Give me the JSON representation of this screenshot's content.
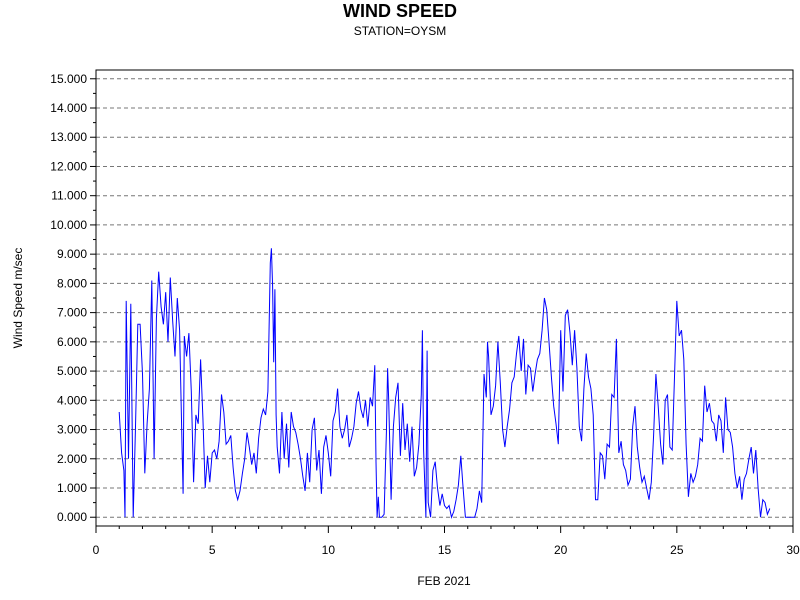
{
  "chart_data": {
    "type": "line",
    "title": "WIND SPEED",
    "subtitle": "STATION=OYSM",
    "xlabel": "FEB 2021",
    "ylabel": "Wind Speed m/sec",
    "xlim": [
      0,
      30
    ],
    "ylim": [
      -0.3,
      15.3
    ],
    "x_ticks": [
      0,
      5,
      10,
      15,
      20,
      25,
      30
    ],
    "y_ticks": [
      0,
      1,
      2,
      3,
      4,
      5,
      6,
      7,
      8,
      9,
      10,
      11,
      12,
      13,
      14,
      15
    ],
    "y_tick_labels": [
      "0.000",
      "1.000",
      "2.000",
      "3.000",
      "4.000",
      "5.000",
      "6.000",
      "7.000",
      "8.000",
      "9.000",
      "10.000",
      "11.000",
      "12.000",
      "13.000",
      "14.000",
      "15.000"
    ],
    "grid": "horizontal-dashed",
    "color": "#0000ff",
    "series": [
      {
        "values": [
          [
            1.0,
            3.6
          ],
          [
            1.1,
            2.2
          ],
          [
            1.2,
            1.6
          ],
          [
            1.25,
            0.0
          ],
          [
            1.3,
            7.4
          ],
          [
            1.4,
            2.0
          ],
          [
            1.5,
            7.3
          ],
          [
            1.6,
            0.0
          ],
          [
            1.7,
            3.1
          ],
          [
            1.8,
            6.6
          ],
          [
            1.9,
            6.6
          ],
          [
            2.0,
            4.9
          ],
          [
            2.1,
            1.5
          ],
          [
            2.2,
            3.2
          ],
          [
            2.3,
            4.4
          ],
          [
            2.4,
            8.1
          ],
          [
            2.5,
            2.0
          ],
          [
            2.6,
            6.8
          ],
          [
            2.7,
            8.4
          ],
          [
            2.8,
            7.2
          ],
          [
            2.9,
            6.6
          ],
          [
            3.0,
            7.7
          ],
          [
            3.1,
            6.0
          ],
          [
            3.2,
            8.2
          ],
          [
            3.3,
            6.7
          ],
          [
            3.4,
            5.5
          ],
          [
            3.5,
            7.5
          ],
          [
            3.6,
            6.4
          ],
          [
            3.7,
            2.5
          ],
          [
            3.75,
            0.8
          ],
          [
            3.8,
            6.2
          ],
          [
            3.9,
            5.5
          ],
          [
            4.0,
            6.3
          ],
          [
            4.1,
            4.3
          ],
          [
            4.2,
            1.2
          ],
          [
            4.3,
            3.5
          ],
          [
            4.4,
            3.2
          ],
          [
            4.5,
            5.4
          ],
          [
            4.6,
            3.4
          ],
          [
            4.7,
            1.0
          ],
          [
            4.8,
            2.1
          ],
          [
            4.9,
            1.2
          ],
          [
            5.0,
            2.2
          ],
          [
            5.1,
            2.3
          ],
          [
            5.2,
            2.0
          ],
          [
            5.3,
            2.6
          ],
          [
            5.4,
            4.2
          ],
          [
            5.5,
            3.6
          ],
          [
            5.6,
            2.5
          ],
          [
            5.7,
            2.6
          ],
          [
            5.8,
            2.8
          ],
          [
            5.9,
            1.7
          ],
          [
            6.0,
            0.9
          ],
          [
            6.1,
            0.6
          ],
          [
            6.2,
            0.9
          ],
          [
            6.3,
            1.5
          ],
          [
            6.4,
            2.0
          ],
          [
            6.5,
            2.9
          ],
          [
            6.6,
            2.4
          ],
          [
            6.7,
            1.8
          ],
          [
            6.8,
            2.2
          ],
          [
            6.9,
            1.5
          ],
          [
            7.0,
            2.7
          ],
          [
            7.1,
            3.4
          ],
          [
            7.2,
            3.7
          ],
          [
            7.3,
            3.5
          ],
          [
            7.4,
            4.3
          ],
          [
            7.5,
            8.7
          ],
          [
            7.55,
            9.2
          ],
          [
            7.6,
            7.9
          ],
          [
            7.65,
            5.3
          ],
          [
            7.7,
            7.8
          ],
          [
            7.75,
            3.5
          ],
          [
            7.8,
            2.4
          ],
          [
            7.9,
            1.5
          ],
          [
            8.0,
            3.6
          ],
          [
            8.1,
            2.0
          ],
          [
            8.2,
            3.2
          ],
          [
            8.3,
            1.7
          ],
          [
            8.4,
            3.6
          ],
          [
            8.5,
            3.1
          ],
          [
            8.6,
            2.9
          ],
          [
            8.7,
            2.5
          ],
          [
            8.8,
            2.0
          ],
          [
            8.9,
            1.4
          ],
          [
            9.0,
            0.9
          ],
          [
            9.1,
            2.2
          ],
          [
            9.2,
            1.2
          ],
          [
            9.3,
            3.0
          ],
          [
            9.4,
            3.4
          ],
          [
            9.5,
            1.6
          ],
          [
            9.6,
            2.3
          ],
          [
            9.7,
            0.8
          ],
          [
            9.8,
            2.4
          ],
          [
            9.9,
            2.8
          ],
          [
            10.0,
            2.2
          ],
          [
            10.1,
            1.4
          ],
          [
            10.2,
            3.3
          ],
          [
            10.3,
            3.6
          ],
          [
            10.4,
            4.4
          ],
          [
            10.5,
            3.1
          ],
          [
            10.6,
            2.7
          ],
          [
            10.7,
            3.0
          ],
          [
            10.8,
            3.5
          ],
          [
            10.9,
            2.4
          ],
          [
            11.0,
            2.7
          ],
          [
            11.1,
            3.1
          ],
          [
            11.2,
            3.9
          ],
          [
            11.3,
            4.3
          ],
          [
            11.4,
            3.7
          ],
          [
            11.5,
            3.4
          ],
          [
            11.6,
            4.0
          ],
          [
            11.7,
            3.1
          ],
          [
            11.8,
            4.1
          ],
          [
            11.9,
            3.8
          ],
          [
            12.0,
            5.2
          ],
          [
            12.05,
            1.9
          ],
          [
            12.1,
            0.0
          ],
          [
            12.15,
            0.7
          ],
          [
            12.2,
            0.0
          ],
          [
            12.3,
            0.0
          ],
          [
            12.4,
            0.1
          ],
          [
            12.5,
            2.9
          ],
          [
            12.55,
            5.1
          ],
          [
            12.6,
            4.0
          ],
          [
            12.7,
            0.6
          ],
          [
            12.8,
            3.1
          ],
          [
            12.9,
            4.1
          ],
          [
            13.0,
            4.6
          ],
          [
            13.1,
            2.1
          ],
          [
            13.2,
            3.9
          ],
          [
            13.3,
            2.3
          ],
          [
            13.4,
            3.2
          ],
          [
            13.5,
            1.9
          ],
          [
            13.6,
            3.1
          ],
          [
            13.7,
            1.4
          ],
          [
            13.8,
            1.7
          ],
          [
            13.9,
            2.5
          ],
          [
            14.0,
            4.2
          ],
          [
            14.05,
            6.4
          ],
          [
            14.1,
            2.3
          ],
          [
            14.2,
            0.0
          ],
          [
            14.25,
            5.7
          ],
          [
            14.3,
            0.5
          ],
          [
            14.4,
            0.0
          ],
          [
            14.5,
            1.6
          ],
          [
            14.6,
            1.9
          ],
          [
            14.7,
            1.0
          ],
          [
            14.8,
            0.4
          ],
          [
            14.9,
            0.8
          ],
          [
            15.0,
            0.4
          ],
          [
            15.1,
            0.3
          ],
          [
            15.2,
            0.4
          ],
          [
            15.3,
            0.0
          ],
          [
            15.4,
            0.2
          ],
          [
            15.5,
            0.6
          ],
          [
            15.6,
            1.1
          ],
          [
            15.7,
            2.1
          ],
          [
            15.8,
            1.0
          ],
          [
            15.9,
            0.0
          ],
          [
            16.0,
            0.0
          ],
          [
            16.1,
            0.0
          ],
          [
            16.2,
            0.0
          ],
          [
            16.3,
            0.0
          ],
          [
            16.4,
            0.3
          ],
          [
            16.5,
            0.9
          ],
          [
            16.6,
            0.5
          ],
          [
            16.7,
            4.9
          ],
          [
            16.8,
            4.1
          ],
          [
            16.85,
            6.0
          ],
          [
            16.9,
            5.5
          ],
          [
            17.0,
            3.5
          ],
          [
            17.1,
            3.8
          ],
          [
            17.2,
            4.5
          ],
          [
            17.3,
            6.0
          ],
          [
            17.4,
            4.6
          ],
          [
            17.5,
            3.0
          ],
          [
            17.6,
            2.4
          ],
          [
            17.7,
            3.1
          ],
          [
            17.8,
            3.7
          ],
          [
            17.9,
            4.6
          ],
          [
            18.0,
            4.8
          ],
          [
            18.1,
            5.6
          ],
          [
            18.2,
            6.2
          ],
          [
            18.3,
            5.0
          ],
          [
            18.4,
            6.1
          ],
          [
            18.5,
            4.2
          ],
          [
            18.6,
            5.2
          ],
          [
            18.7,
            5.1
          ],
          [
            18.8,
            4.3
          ],
          [
            18.9,
            4.9
          ],
          [
            19.0,
            5.4
          ],
          [
            19.1,
            5.6
          ],
          [
            19.2,
            6.4
          ],
          [
            19.3,
            7.5
          ],
          [
            19.4,
            7.1
          ],
          [
            19.5,
            6.0
          ],
          [
            19.6,
            4.8
          ],
          [
            19.7,
            3.8
          ],
          [
            19.8,
            3.2
          ],
          [
            19.9,
            2.5
          ],
          [
            20.0,
            6.4
          ],
          [
            20.1,
            4.3
          ],
          [
            20.2,
            6.9
          ],
          [
            20.3,
            7.1
          ],
          [
            20.4,
            6.3
          ],
          [
            20.5,
            5.2
          ],
          [
            20.6,
            6.4
          ],
          [
            20.7,
            5.1
          ],
          [
            20.8,
            3.1
          ],
          [
            20.9,
            2.6
          ],
          [
            21.0,
            4.4
          ],
          [
            21.1,
            5.6
          ],
          [
            21.2,
            4.8
          ],
          [
            21.3,
            4.4
          ],
          [
            21.4,
            3.5
          ],
          [
            21.5,
            0.6
          ],
          [
            21.6,
            0.6
          ],
          [
            21.7,
            2.2
          ],
          [
            21.8,
            2.1
          ],
          [
            21.9,
            1.3
          ],
          [
            22.0,
            2.5
          ],
          [
            22.1,
            2.4
          ],
          [
            22.2,
            4.2
          ],
          [
            22.3,
            4.1
          ],
          [
            22.4,
            6.1
          ],
          [
            22.5,
            2.2
          ],
          [
            22.6,
            2.6
          ],
          [
            22.7,
            1.8
          ],
          [
            22.8,
            1.6
          ],
          [
            22.9,
            1.1
          ],
          [
            23.0,
            1.3
          ],
          [
            23.1,
            3.1
          ],
          [
            23.2,
            3.8
          ],
          [
            23.3,
            2.4
          ],
          [
            23.4,
            1.7
          ],
          [
            23.5,
            1.2
          ],
          [
            23.6,
            1.4
          ],
          [
            23.7,
            1.0
          ],
          [
            23.8,
            0.6
          ],
          [
            23.9,
            1.2
          ],
          [
            24.0,
            2.8
          ],
          [
            24.1,
            4.9
          ],
          [
            24.2,
            3.8
          ],
          [
            24.3,
            2.5
          ],
          [
            24.4,
            1.8
          ],
          [
            24.5,
            4.0
          ],
          [
            24.6,
            4.2
          ],
          [
            24.7,
            2.4
          ],
          [
            24.8,
            2.3
          ],
          [
            24.9,
            4.8
          ],
          [
            25.0,
            7.4
          ],
          [
            25.1,
            6.2
          ],
          [
            25.2,
            6.4
          ],
          [
            25.3,
            5.4
          ],
          [
            25.4,
            2.5
          ],
          [
            25.5,
            0.7
          ],
          [
            25.6,
            1.5
          ],
          [
            25.7,
            1.2
          ],
          [
            25.8,
            1.4
          ],
          [
            25.9,
            1.8
          ],
          [
            26.0,
            2.7
          ],
          [
            26.1,
            2.6
          ],
          [
            26.2,
            4.5
          ],
          [
            26.3,
            3.6
          ],
          [
            26.4,
            3.9
          ],
          [
            26.5,
            3.3
          ],
          [
            26.6,
            3.2
          ],
          [
            26.7,
            2.6
          ],
          [
            26.8,
            3.5
          ],
          [
            26.9,
            3.3
          ],
          [
            27.0,
            2.2
          ],
          [
            27.1,
            4.1
          ],
          [
            27.2,
            3.0
          ],
          [
            27.3,
            2.9
          ],
          [
            27.4,
            2.4
          ],
          [
            27.5,
            1.5
          ],
          [
            27.6,
            1.0
          ],
          [
            27.7,
            1.4
          ],
          [
            27.8,
            0.6
          ],
          [
            27.9,
            1.3
          ],
          [
            28.0,
            1.5
          ],
          [
            28.1,
            2.0
          ],
          [
            28.2,
            2.4
          ],
          [
            28.3,
            1.5
          ],
          [
            28.4,
            2.3
          ],
          [
            28.5,
            1.0
          ],
          [
            28.6,
            0.0
          ],
          [
            28.7,
            0.6
          ],
          [
            28.8,
            0.5
          ],
          [
            28.9,
            0.1
          ],
          [
            29.0,
            0.3
          ]
        ]
      }
    ]
  }
}
